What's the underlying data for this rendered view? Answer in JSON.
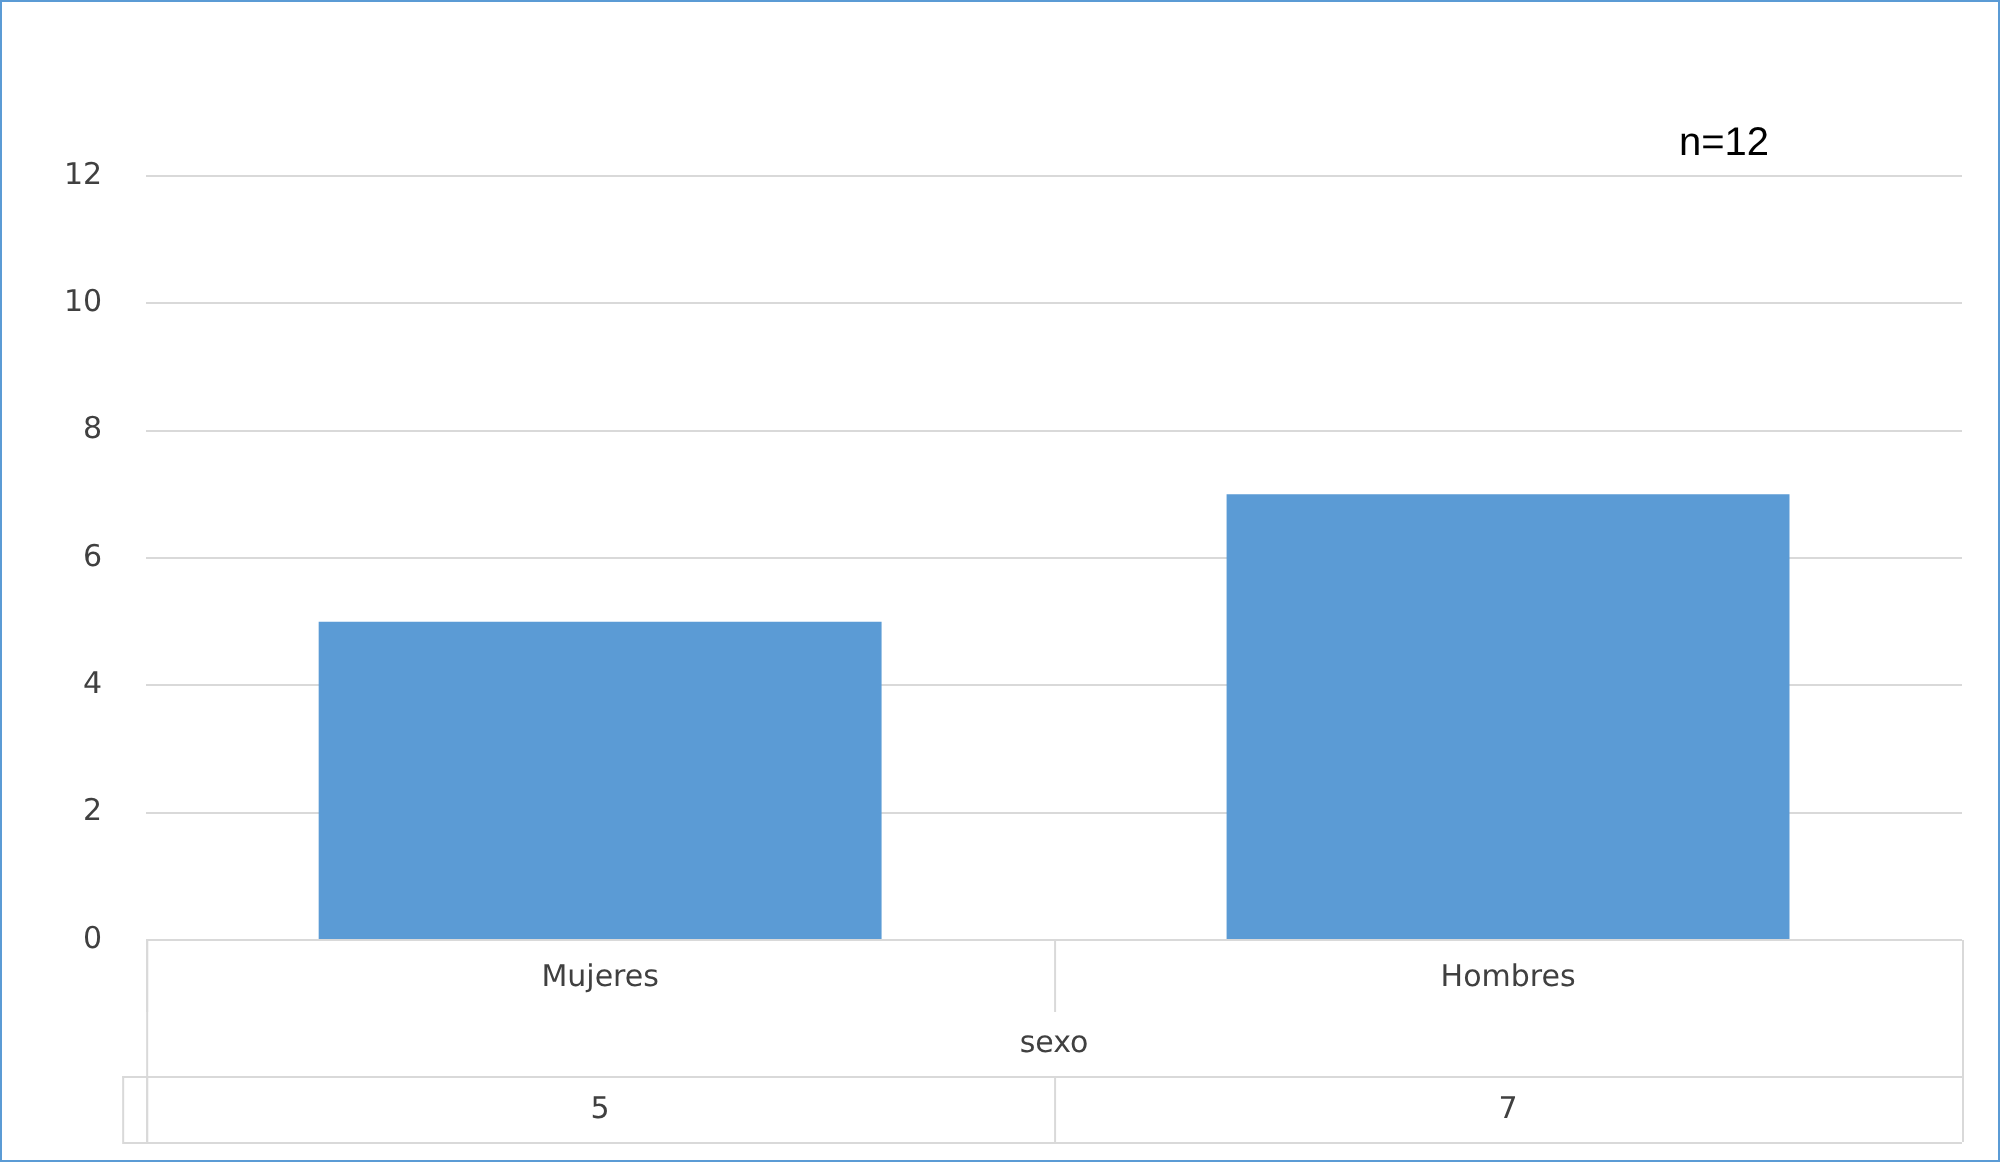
{
  "chart_data": {
    "type": "bar",
    "xlabel": "sexo",
    "categories": [
      "Mujeres",
      "Hombres"
    ],
    "values": [
      5,
      7
    ],
    "color": "#5b9bd5",
    "ylim": [
      0,
      12
    ],
    "yticks": [
      0,
      2,
      4,
      6,
      8,
      10,
      12
    ],
    "grid": "y",
    "legend": false,
    "data_labels": true,
    "annotations": [
      "n=12"
    ]
  }
}
